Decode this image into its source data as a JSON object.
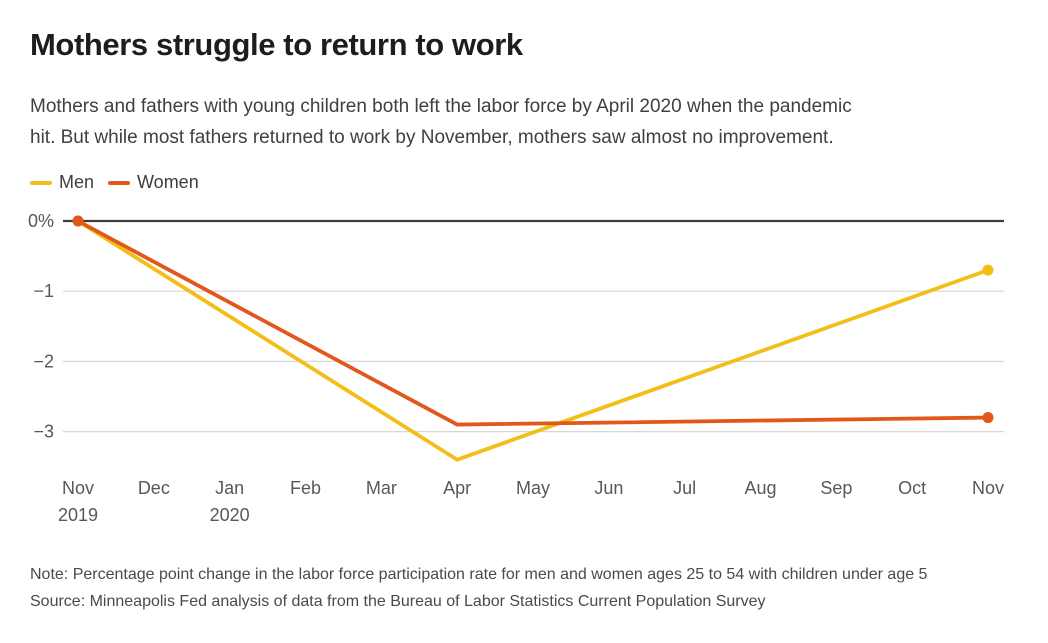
{
  "header": {
    "title": "Mothers struggle to return to work",
    "subtitle_line1": "Mothers and fathers with young children both left the labor force by April 2020 when the pandemic",
    "subtitle_line2": "hit. But while most fathers returned to work by November, mothers saw almost no improvement."
  },
  "legend": [
    {
      "label": "Men",
      "color": "#F2BE17"
    },
    {
      "label": "Women",
      "color": "#E2581C"
    }
  ],
  "chart_data": {
    "type": "line",
    "title": "Mothers struggle to return to work",
    "xlabel": "",
    "ylabel": "Percentage point change in labor force participation rate",
    "x_labels": [
      "Nov",
      "Dec",
      "Jan",
      "Feb",
      "Mar",
      "Apr",
      "May",
      "Jun",
      "Jul",
      "Aug",
      "Sep",
      "Oct",
      "Nov"
    ],
    "x_sub_labels": [
      {
        "index": 0,
        "label": "2019"
      },
      {
        "index": 2,
        "label": "2020"
      }
    ],
    "y_ticks": [
      {
        "label": "0%",
        "value": 0
      },
      {
        "label": "−1",
        "value": -1
      },
      {
        "label": "−2",
        "value": -2
      },
      {
        "label": "−3",
        "value": -3
      }
    ],
    "ylim": [
      -3.6,
      0.3
    ],
    "grid": true,
    "legend_position": "top-left",
    "zero_baseline": true,
    "series": [
      {
        "name": "Men",
        "color": "#F2BE17",
        "points": [
          {
            "x": "Nov 2019",
            "month_index": 0,
            "value": 0
          },
          {
            "x": "Apr 2020",
            "month_index": 5,
            "value": -3.4
          },
          {
            "x": "Nov 2020",
            "month_index": 12,
            "value": -0.7
          }
        ]
      },
      {
        "name": "Women",
        "color": "#E2581C",
        "points": [
          {
            "x": "Nov 2019",
            "month_index": 0,
            "value": 0
          },
          {
            "x": "Apr 2020",
            "month_index": 5,
            "value": -2.9
          },
          {
            "x": "Nov 2020",
            "month_index": 12,
            "value": -2.8
          }
        ]
      }
    ]
  },
  "footer": {
    "note": "Note: Percentage point change in the labor force participation rate for men and women ages 25 to 54 with children under age 5",
    "source": "Source: Minneapolis Fed analysis of data from the Bureau of Labor Statistics Current Population Survey"
  }
}
